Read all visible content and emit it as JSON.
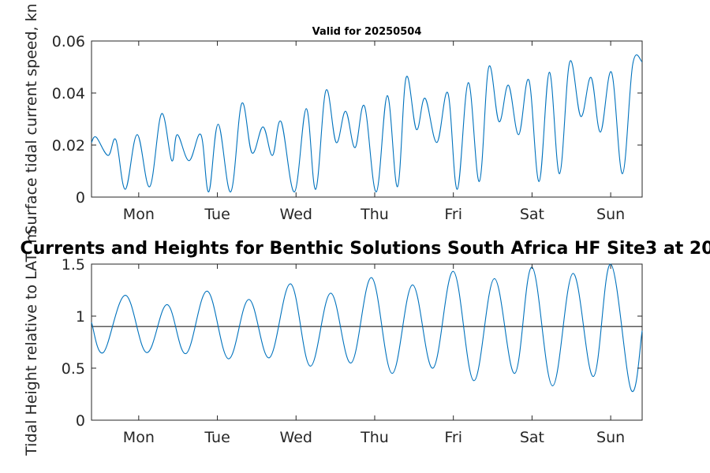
{
  "chart_data": [
    {
      "type": "line",
      "title": "Valid for 20250504",
      "xlabel": "",
      "ylabel": "Surface tidal current speed, kn",
      "ylim": [
        0,
        0.06
      ],
      "yticks": [
        0,
        0.02,
        0.04,
        0.06
      ],
      "ytick_labels": [
        "0",
        "0.02",
        "0.04",
        "0.06"
      ],
      "xlim": [
        0,
        7
      ],
      "xticks": [
        0.6,
        1.6,
        2.6,
        3.6,
        4.6,
        5.6,
        6.6
      ],
      "xtick_labels": [
        "Mon",
        "Tue",
        "Wed",
        "Thu",
        "Fri",
        "Sat",
        "Sun"
      ],
      "grid": false,
      "color": "#0072bd",
      "series": [
        {
          "x": [
            0.0,
            0.06,
            0.21,
            0.31,
            0.43,
            0.58,
            0.74,
            0.89,
            1.02,
            1.09,
            1.24,
            1.39,
            1.49,
            1.61,
            1.77,
            1.91,
            2.04,
            2.18,
            2.3,
            2.41,
            2.58,
            2.73,
            2.85,
            2.98,
            3.11,
            3.23,
            3.35,
            3.47,
            3.62,
            3.76,
            3.89,
            4.0,
            4.13,
            4.24,
            4.39,
            4.53,
            4.65,
            4.79,
            4.93,
            5.05,
            5.18,
            5.3,
            5.43,
            5.56,
            5.69,
            5.82,
            5.95,
            6.08,
            6.22,
            6.35,
            6.47,
            6.61,
            6.75,
            6.88,
            7.0
          ],
          "y": [
            0.021,
            0.023,
            0.016,
            0.022,
            0.003,
            0.024,
            0.004,
            0.032,
            0.014,
            0.024,
            0.014,
            0.024,
            0.002,
            0.028,
            0.002,
            0.036,
            0.017,
            0.027,
            0.016,
            0.029,
            0.002,
            0.034,
            0.003,
            0.041,
            0.021,
            0.033,
            0.019,
            0.035,
            0.002,
            0.039,
            0.004,
            0.046,
            0.026,
            0.038,
            0.021,
            0.04,
            0.003,
            0.044,
            0.006,
            0.05,
            0.029,
            0.043,
            0.024,
            0.045,
            0.006,
            0.048,
            0.009,
            0.052,
            0.031,
            0.046,
            0.025,
            0.048,
            0.009,
            0.051,
            0.052
          ]
        }
      ]
    },
    {
      "type": "line",
      "title": "Currents and Heights for Benthic Solutions South Africa HF Site3 at 20",
      "xlabel": "",
      "ylabel": "Tidal Height relative to LAT, m",
      "ylim": [
        0,
        1.5
      ],
      "yticks": [
        0,
        0.5,
        1,
        1.5
      ],
      "ytick_labels": [
        "0",
        "0.5",
        "1",
        "1.5"
      ],
      "xlim": [
        0,
        7
      ],
      "xticks": [
        0.6,
        1.6,
        2.6,
        3.6,
        4.6,
        5.6,
        6.6
      ],
      "xtick_labels": [
        "Mon",
        "Tue",
        "Wed",
        "Thu",
        "Fri",
        "Sat",
        "Sun"
      ],
      "grid": false,
      "color": "#0072bd",
      "reference_line": 0.9,
      "reference_color": "#262626",
      "series": [
        {
          "x": [
            0.0,
            0.15,
            0.43,
            0.7,
            0.96,
            1.2,
            1.47,
            1.74,
            2.0,
            2.26,
            2.53,
            2.78,
            3.04,
            3.3,
            3.56,
            3.82,
            4.08,
            4.34,
            4.6,
            4.86,
            5.12,
            5.38,
            5.6,
            5.86,
            6.12,
            6.38,
            6.6,
            6.86,
            7.0
          ],
          "y": [
            0.94,
            0.65,
            1.2,
            0.65,
            1.11,
            0.64,
            1.24,
            0.59,
            1.16,
            0.6,
            1.31,
            0.52,
            1.22,
            0.55,
            1.37,
            0.45,
            1.3,
            0.5,
            1.43,
            0.38,
            1.36,
            0.45,
            1.47,
            0.33,
            1.41,
            0.42,
            1.5,
            0.29,
            0.86
          ]
        }
      ]
    }
  ]
}
